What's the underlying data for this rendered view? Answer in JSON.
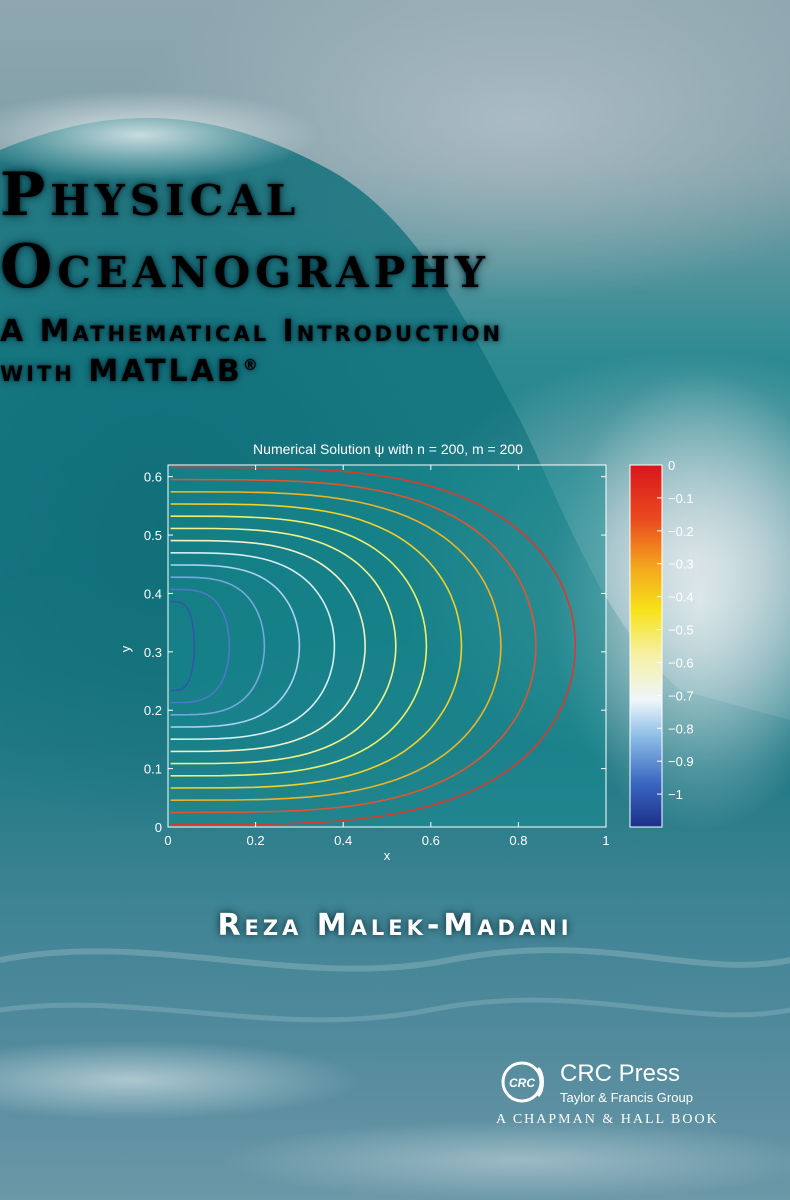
{
  "book": {
    "title_line1": "Physical",
    "title_line2": "Oceanography",
    "subtitle_line1": "A Mathematical Introduction",
    "subtitle_line2": "with MATLAB",
    "subtitle_mark": "®",
    "author": "Reza Malek-Madani"
  },
  "publisher": {
    "name": "CRC Press",
    "group": "Taylor & Francis Group",
    "imprint": "A CHAPMAN & HALL BOOK",
    "logo_text": "CRC"
  },
  "colors": {
    "text": "#ffffff",
    "plot_bg": "#178a8f",
    "axis": "#ffffff"
  },
  "chart_data": {
    "type": "contour",
    "title": "Numerical Solution ψ with n = 200, m = 200",
    "xlabel": "x",
    "ylabel": "y",
    "xlim": [
      0,
      1
    ],
    "ylim": [
      0,
      0.62
    ],
    "x_ticks": [
      "0",
      "0.2",
      "0.4",
      "0.6",
      "0.8",
      "1"
    ],
    "y_ticks": [
      "0",
      "0.1",
      "0.2",
      "0.3",
      "0.4",
      "0.5",
      "0.6"
    ],
    "colorbar": {
      "range": [
        -1.1,
        0
      ],
      "ticks": [
        "0",
        "−0.1",
        "−0.2",
        "−0.3",
        "−0.4",
        "−0.5",
        "−0.6",
        "−0.7",
        "−0.8",
        "−0.9",
        "−1"
      ]
    },
    "contours": [
      {
        "level": -0.05,
        "x_extent": 0.93,
        "color": "#d83b2c"
      },
      {
        "level": -0.1,
        "x_extent": 0.84,
        "color": "#e2542e"
      },
      {
        "level": -0.2,
        "x_extent": 0.76,
        "color": "#f0b326"
      },
      {
        "level": -0.3,
        "x_extent": 0.67,
        "color": "#f3d02a"
      },
      {
        "level": -0.4,
        "x_extent": 0.59,
        "color": "#eef068"
      },
      {
        "level": -0.5,
        "x_extent": 0.52,
        "color": "#f2f28c"
      },
      {
        "level": -0.6,
        "x_extent": 0.45,
        "color": "#f1f0c8"
      },
      {
        "level": -0.7,
        "x_extent": 0.38,
        "color": "#d7eef7"
      },
      {
        "level": -0.8,
        "x_extent": 0.3,
        "color": "#a9d2ee"
      },
      {
        "level": -0.9,
        "x_extent": 0.22,
        "color": "#73a8dd"
      },
      {
        "level": -1.0,
        "x_extent": 0.14,
        "color": "#4a79c6"
      },
      {
        "level": -1.05,
        "x_extent": 0.06,
        "color": "#3456a8"
      }
    ]
  }
}
